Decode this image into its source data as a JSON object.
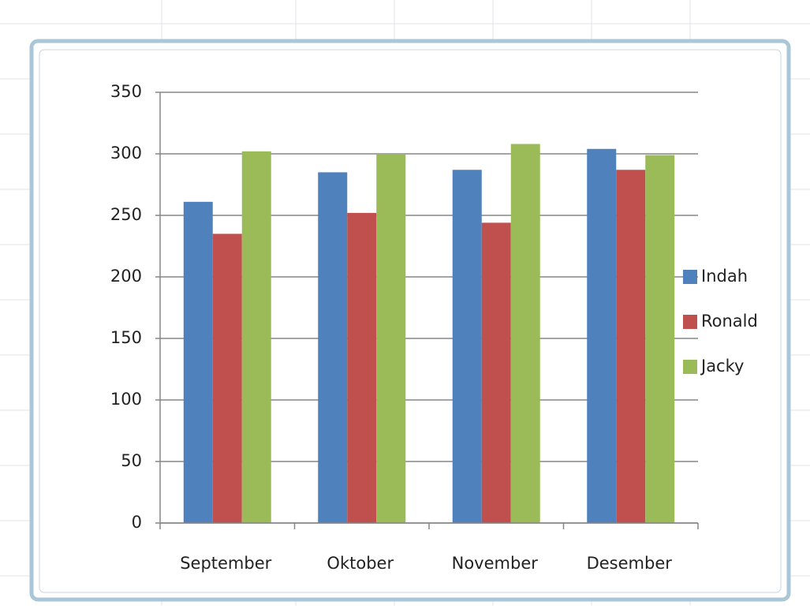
{
  "chart_data": {
    "type": "bar",
    "categories": [
      "September",
      "Oktober",
      "November",
      "Desember"
    ],
    "series": [
      {
        "name": "Indah",
        "color": "#4f81bd",
        "values": [
          261,
          285,
          287,
          304
        ]
      },
      {
        "name": "Ronald",
        "color": "#c0504d",
        "values": [
          235,
          252,
          244,
          287
        ]
      },
      {
        "name": "Jacky",
        "color": "#9bbb59",
        "values": [
          302,
          300,
          308,
          299
        ]
      }
    ],
    "ylim": [
      0,
      350
    ],
    "yticks": [
      0,
      50,
      100,
      150,
      200,
      250,
      300,
      350
    ],
    "grid": true,
    "legend": "right"
  }
}
